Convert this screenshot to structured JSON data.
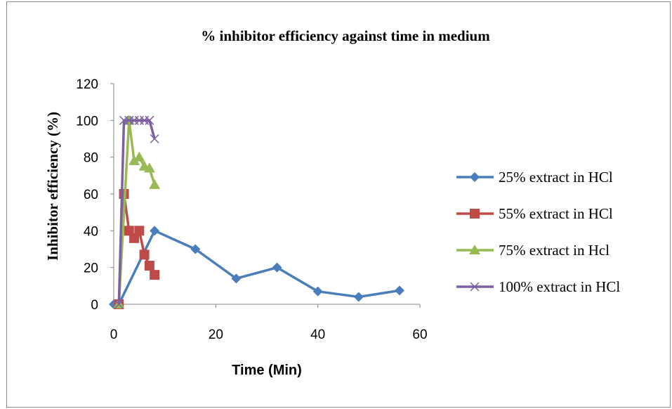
{
  "chart_data": {
    "type": "line",
    "title": "% inhibitor efficiency against time in medium",
    "xlabel": "Time (Min)",
    "ylabel": "Inhibitor efficiency (%)",
    "xlim": [
      0,
      60
    ],
    "ylim": [
      0,
      120
    ],
    "xticks": [
      "0",
      "20",
      "40",
      "60"
    ],
    "yticks": [
      "0",
      "20",
      "40",
      "60",
      "80",
      "100",
      "120"
    ],
    "grid": false,
    "legend_position": "right",
    "series": [
      {
        "name": "25% extract in HCl",
        "color": "#4a7ebb",
        "marker": "diamond",
        "points": [
          [
            0,
            0
          ],
          [
            1,
            0
          ],
          [
            8,
            40
          ],
          [
            16,
            30
          ],
          [
            24,
            14
          ],
          [
            32,
            20
          ],
          [
            40,
            7
          ],
          [
            48,
            4
          ],
          [
            56,
            7.5
          ]
        ]
      },
      {
        "name": "55% extract in HCl",
        "color": "#be4b48",
        "marker": "square",
        "points": [
          [
            1,
            0
          ],
          [
            2,
            60
          ],
          [
            3,
            40
          ],
          [
            4,
            36
          ],
          [
            5,
            40
          ],
          [
            6,
            27
          ],
          [
            7,
            21
          ],
          [
            8,
            16
          ]
        ]
      },
      {
        "name": "75% extract in Hcl",
        "color": "#98b954",
        "marker": "triangle",
        "points": [
          [
            1,
            0
          ],
          [
            3,
            100
          ],
          [
            4,
            78
          ],
          [
            5,
            80
          ],
          [
            6,
            75
          ],
          [
            7,
            74
          ],
          [
            8,
            65
          ]
        ]
      },
      {
        "name": "100% extract in HCl",
        "color": "#7d60a0",
        "marker": "x",
        "points": [
          [
            1,
            0
          ],
          [
            2,
            100
          ],
          [
            3,
            100
          ],
          [
            4,
            100
          ],
          [
            5,
            100
          ],
          [
            6,
            100
          ],
          [
            7,
            100
          ],
          [
            8,
            90
          ]
        ]
      }
    ]
  }
}
